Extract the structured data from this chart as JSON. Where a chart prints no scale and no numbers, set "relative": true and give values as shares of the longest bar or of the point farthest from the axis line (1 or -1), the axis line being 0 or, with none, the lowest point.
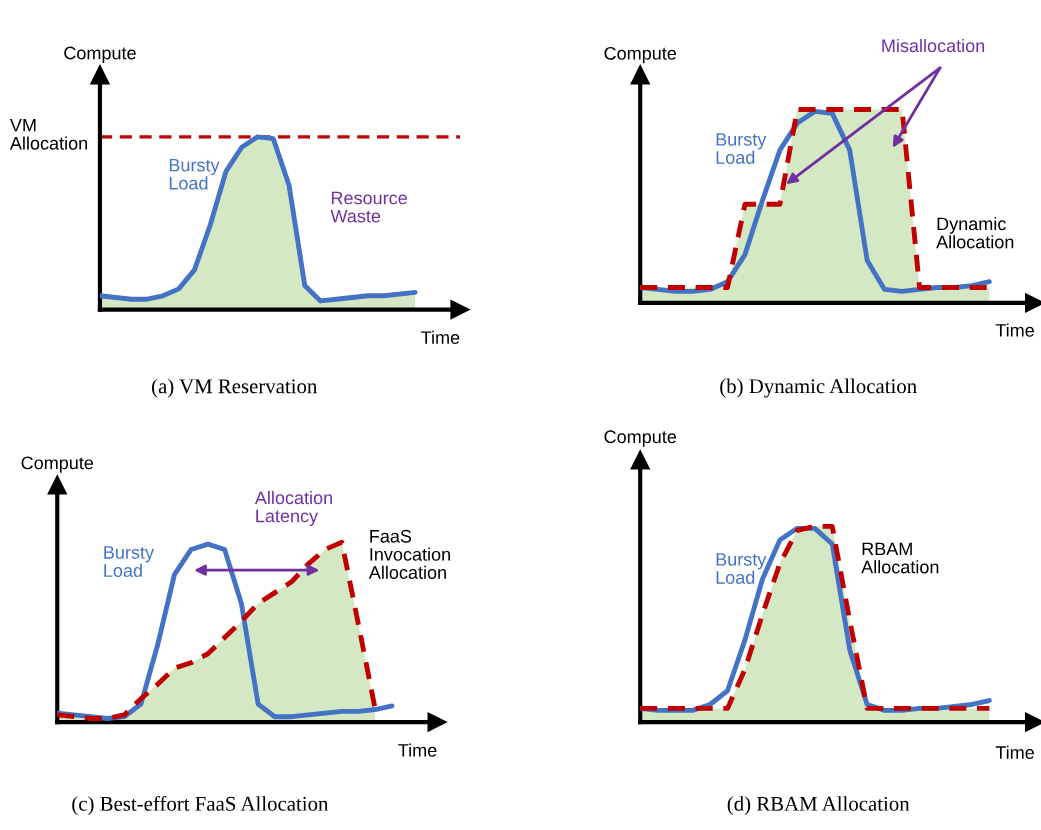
{
  "chart_data": [
    {
      "type": "line",
      "title": "(a) VM Reservation",
      "xlabel": "Time",
      "ylabel": "Compute",
      "relative": true,
      "categories": [
        null,
        null,
        null,
        null,
        null,
        null,
        null,
        null,
        null,
        null,
        null,
        null,
        null,
        null,
        null,
        null,
        null,
        null,
        null,
        null,
        null
      ],
      "series": [
        {
          "name": "Bursty Load",
          "type": "area",
          "color": "#4472c4",
          "values": [
            0.08,
            0.07,
            0.06,
            0.06,
            0.08,
            0.12,
            0.23,
            0.49,
            0.8,
            0.94,
            1.0,
            0.99,
            0.72,
            0.14,
            0.05,
            0.06,
            0.07,
            0.08,
            0.08,
            0.09,
            0.1
          ]
        }
      ],
      "ref_lines": [
        {
          "axis": "y",
          "value": 1.0,
          "label": "VM Allocation",
          "color": "#c00000",
          "line_style": "dashed"
        }
      ],
      "annotations": [
        "Resource Waste"
      ]
    },
    {
      "type": "line",
      "title": "(b) Dynamic Allocation",
      "xlabel": "Time",
      "ylabel": "Compute",
      "relative": true,
      "categories": [
        null,
        null,
        null,
        null,
        null,
        null,
        null,
        null,
        null,
        null,
        null,
        null,
        null,
        null,
        null,
        null,
        null,
        null,
        null,
        null,
        null
      ],
      "series": [
        {
          "name": "Bursty Load",
          "color": "#4472c4",
          "values": [
            0.08,
            0.07,
            0.06,
            0.06,
            0.07,
            0.11,
            0.25,
            0.53,
            0.79,
            0.93,
            0.99,
            0.98,
            0.79,
            0.22,
            0.07,
            0.06,
            0.07,
            0.08,
            0.08,
            0.09,
            0.11
          ]
        },
        {
          "name": "Dynamic Allocation",
          "type": "area",
          "color": "#c00000",
          "line_style": "dashed",
          "values": [
            0.08,
            0.08,
            0.08,
            0.08,
            0.08,
            0.08,
            0.51,
            0.51,
            0.51,
            1.0,
            1.0,
            1.0,
            1.0,
            1.0,
            1.0,
            1.0,
            0.08,
            0.08,
            0.08,
            0.08,
            0.08
          ]
        }
      ],
      "annotations": [
        "Misallocation"
      ]
    },
    {
      "type": "line",
      "title": "(c) Best-effort FaaS Allocation",
      "xlabel": "Time",
      "ylabel": "Compute",
      "relative": true,
      "categories": [
        null,
        null,
        null,
        null,
        null,
        null,
        null,
        null,
        null,
        null,
        null,
        null,
        null,
        null,
        null,
        null,
        null,
        null,
        null,
        null,
        null
      ],
      "series": [
        {
          "name": "Bursty Load",
          "color": "#4472c4",
          "values": [
            0.05,
            0.04,
            0.03,
            0.02,
            0.03,
            0.1,
            0.43,
            0.82,
            0.96,
            0.99,
            0.96,
            0.66,
            0.1,
            0.03,
            0.03,
            0.04,
            0.05,
            0.06,
            0.06,
            0.07,
            0.09
          ]
        },
        {
          "name": "FaaS Invocation Allocation",
          "type": "area",
          "color": "#c00000",
          "line_style": "dashed",
          "values": [
            0.04,
            0.03,
            0.02,
            0.02,
            0.04,
            0.13,
            0.21,
            0.3,
            0.33,
            0.38,
            0.47,
            0.56,
            0.66,
            0.72,
            0.78,
            0.88,
            0.96,
            1.0,
            0.54,
            0.07,
            null
          ]
        }
      ],
      "annotations": [
        "Allocation Latency"
      ]
    },
    {
      "type": "line",
      "title": "(d) RBAM Allocation",
      "xlabel": "Time",
      "ylabel": "Compute",
      "relative": true,
      "categories": [
        null,
        null,
        null,
        null,
        null,
        null,
        null,
        null,
        null,
        null,
        null,
        null,
        null,
        null,
        null,
        null,
        null,
        null,
        null,
        null,
        null
      ],
      "series": [
        {
          "name": "Bursty Load",
          "color": "#4472c4",
          "values": [
            0.07,
            0.06,
            0.06,
            0.06,
            0.09,
            0.16,
            0.42,
            0.73,
            0.93,
            0.99,
            0.99,
            0.91,
            0.37,
            0.09,
            0.06,
            0.06,
            0.07,
            0.07,
            0.08,
            0.09,
            0.11
          ]
        },
        {
          "name": "RBAM Allocation",
          "type": "area",
          "color": "#c00000",
          "line_style": "dashed",
          "values": [
            0.07,
            0.07,
            0.07,
            0.07,
            0.07,
            0.07,
            0.27,
            0.55,
            0.81,
            0.98,
            1.0,
            1.0,
            0.52,
            0.07,
            0.07,
            0.07,
            0.07,
            0.07,
            0.07,
            0.07,
            0.07
          ]
        }
      ]
    }
  ]
}
